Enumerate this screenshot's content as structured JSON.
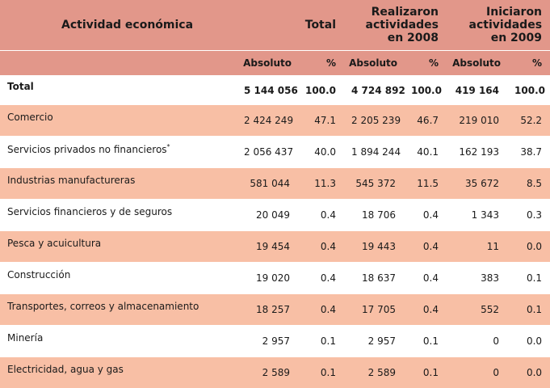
{
  "header": {
    "activity_label": "Actividad económica",
    "group_total": "Total",
    "group_2008_line1": "Realizaron",
    "group_2008_line2": "actividades",
    "group_2008_line3": "en 2008",
    "group_2009_line1": "Iniciaron",
    "group_2009_line2": "actividades",
    "group_2009_line3": "en 2009",
    "sub_abs": "Absoluto",
    "sub_pct": "%"
  },
  "rows": [
    {
      "name": "Total",
      "mark": "",
      "t_abs": "5 144 056",
      "t_pct": "100.0",
      "a_abs": "4 724 892",
      "a_pct": "100.0",
      "b_abs": "419 164",
      "b_pct": "100.0"
    },
    {
      "name": "Comercio",
      "mark": "",
      "t_abs": "2 424 249",
      "t_pct": "47.1",
      "a_abs": "2 205 239",
      "a_pct": "46.7",
      "b_abs": "219 010",
      "b_pct": "52.2"
    },
    {
      "name": "Servicios privados no financieros",
      "mark": "*",
      "t_abs": "2 056 437",
      "t_pct": "40.0",
      "a_abs": "1 894 244",
      "a_pct": "40.1",
      "b_abs": "162 193",
      "b_pct": "38.7"
    },
    {
      "name": "Industrias manufactureras",
      "mark": "",
      "t_abs": "581 044",
      "t_pct": "11.3",
      "a_abs": "545 372",
      "a_pct": "11.5",
      "b_abs": "35 672",
      "b_pct": "8.5"
    },
    {
      "name": "Servicios financieros y de seguros",
      "mark": "",
      "t_abs": "20 049",
      "t_pct": "0.4",
      "a_abs": "18 706",
      "a_pct": "0.4",
      "b_abs": "1 343",
      "b_pct": "0.3"
    },
    {
      "name": "Pesca y acuicultura",
      "mark": "",
      "t_abs": "19 454",
      "t_pct": "0.4",
      "a_abs": "19 443",
      "a_pct": "0.4",
      "b_abs": "11",
      "b_pct": "0.0"
    },
    {
      "name": "Construcción",
      "mark": "",
      "t_abs": "19 020",
      "t_pct": "0.4",
      "a_abs": "18 637",
      "a_pct": "0.4",
      "b_abs": "383",
      "b_pct": "0.1"
    },
    {
      "name": "Transportes, correos y almacenamiento",
      "mark": "",
      "t_abs": "18 257",
      "t_pct": "0.4",
      "a_abs": "17 705",
      "a_pct": "0.4",
      "b_abs": "552",
      "b_pct": "0.1"
    },
    {
      "name": "Minería",
      "mark": "",
      "t_abs": "2 957",
      "t_pct": "0.1",
      "a_abs": "2 957",
      "a_pct": "0.1",
      "b_abs": "0",
      "b_pct": "0.0"
    },
    {
      "name": "Electricidad, agua y gas",
      "mark": "",
      "t_abs": "2 589",
      "t_pct": "0.1",
      "a_abs": "2 589",
      "a_pct": "0.1",
      "b_abs": "0",
      "b_pct": "0.0"
    }
  ],
  "colors": {
    "header_bg": "#e2978a",
    "stripe_bg": "#f8bfa5",
    "row_bg": "#ffffff"
  }
}
